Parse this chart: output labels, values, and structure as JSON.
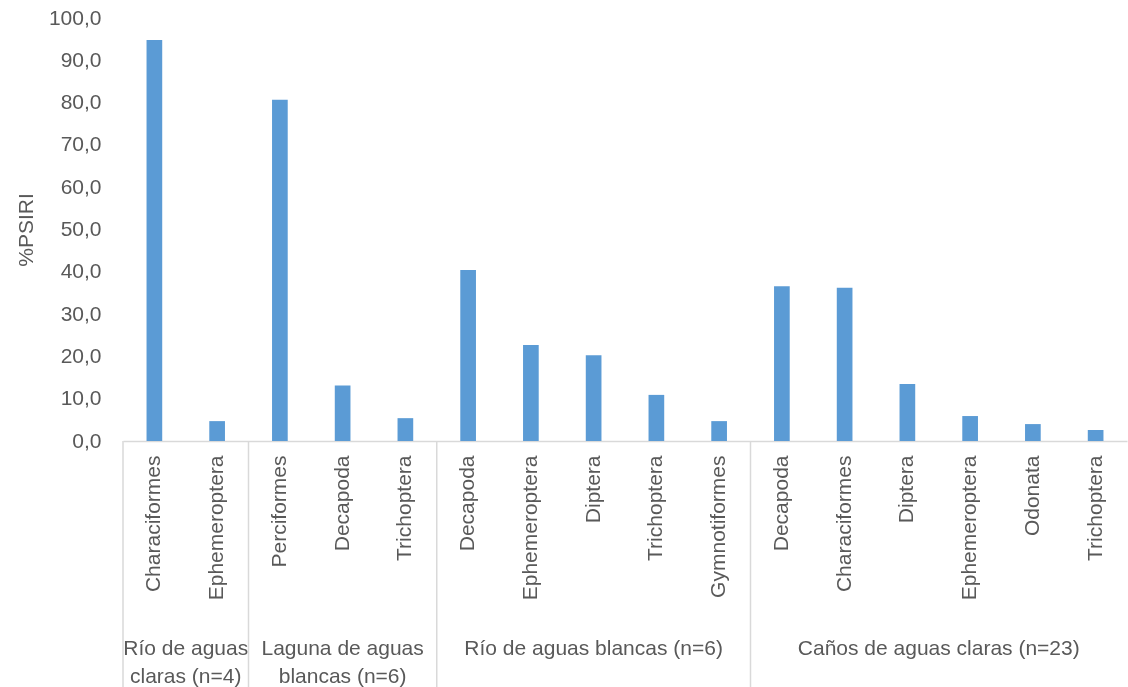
{
  "chart_data": {
    "type": "bar",
    "ylabel": "%PSIRI",
    "categories": [
      "Characiformes",
      "Ephemeroptera",
      "Perciformes",
      "Decapoda",
      "Trichoptera",
      "Decapoda",
      "Ephemeroptera",
      "Diptera",
      "Trichoptera",
      "Gymnotiformes",
      "Decapoda",
      "Characiformes",
      "Diptera",
      "Ephemeroptera",
      "Odonata",
      "Trichoptera"
    ],
    "series": [
      {
        "color": "#5b9bd5",
        "values": [
          94.8,
          4.7,
          null,
          null,
          null,
          null,
          null,
          null,
          null,
          null,
          null,
          null,
          null,
          null,
          null,
          null
        ]
      },
      {
        "color": "#5b9bd5",
        "values": [
          null,
          null,
          80.7,
          13.1,
          5.4,
          null,
          null,
          null,
          null,
          null,
          null,
          null,
          null,
          null,
          null,
          null
        ]
      },
      {
        "color": "#5b9bd5",
        "values": [
          null,
          null,
          null,
          null,
          null,
          40.4,
          22.7,
          20.3,
          10.9,
          4.7,
          null,
          null,
          null,
          null,
          null,
          null
        ]
      },
      {
        "color": "#5b9bd5",
        "values": [
          null,
          null,
          null,
          null,
          null,
          null,
          null,
          null,
          null,
          null,
          36.6,
          36.2,
          13.5,
          5.9,
          4.0,
          2.6
        ]
      }
    ],
    "annotations": [
      "Río de aguas claras (n=4)",
      "Laguna de aguas blancas (n=6)",
      "Río de aguas blancas (n=6)",
      "Caños de aguas claras (n=23)"
    ],
    "ylim": [
      0,
      100
    ],
    "yticks": [
      {
        "value": 0,
        "label": "0,0"
      },
      {
        "value": 10,
        "label": "10,0"
      },
      {
        "value": 20,
        "label": "20,0"
      },
      {
        "value": 30,
        "label": "30,0"
      },
      {
        "value": 40,
        "label": "40,0"
      },
      {
        "value": 50,
        "label": "50,0"
      },
      {
        "value": 60,
        "label": "60,0"
      },
      {
        "value": 70,
        "label": "70,0"
      },
      {
        "value": 80,
        "label": "80,0"
      },
      {
        "value": 90,
        "label": "90,0"
      },
      {
        "value": 100,
        "label": "100,0"
      }
    ]
  }
}
